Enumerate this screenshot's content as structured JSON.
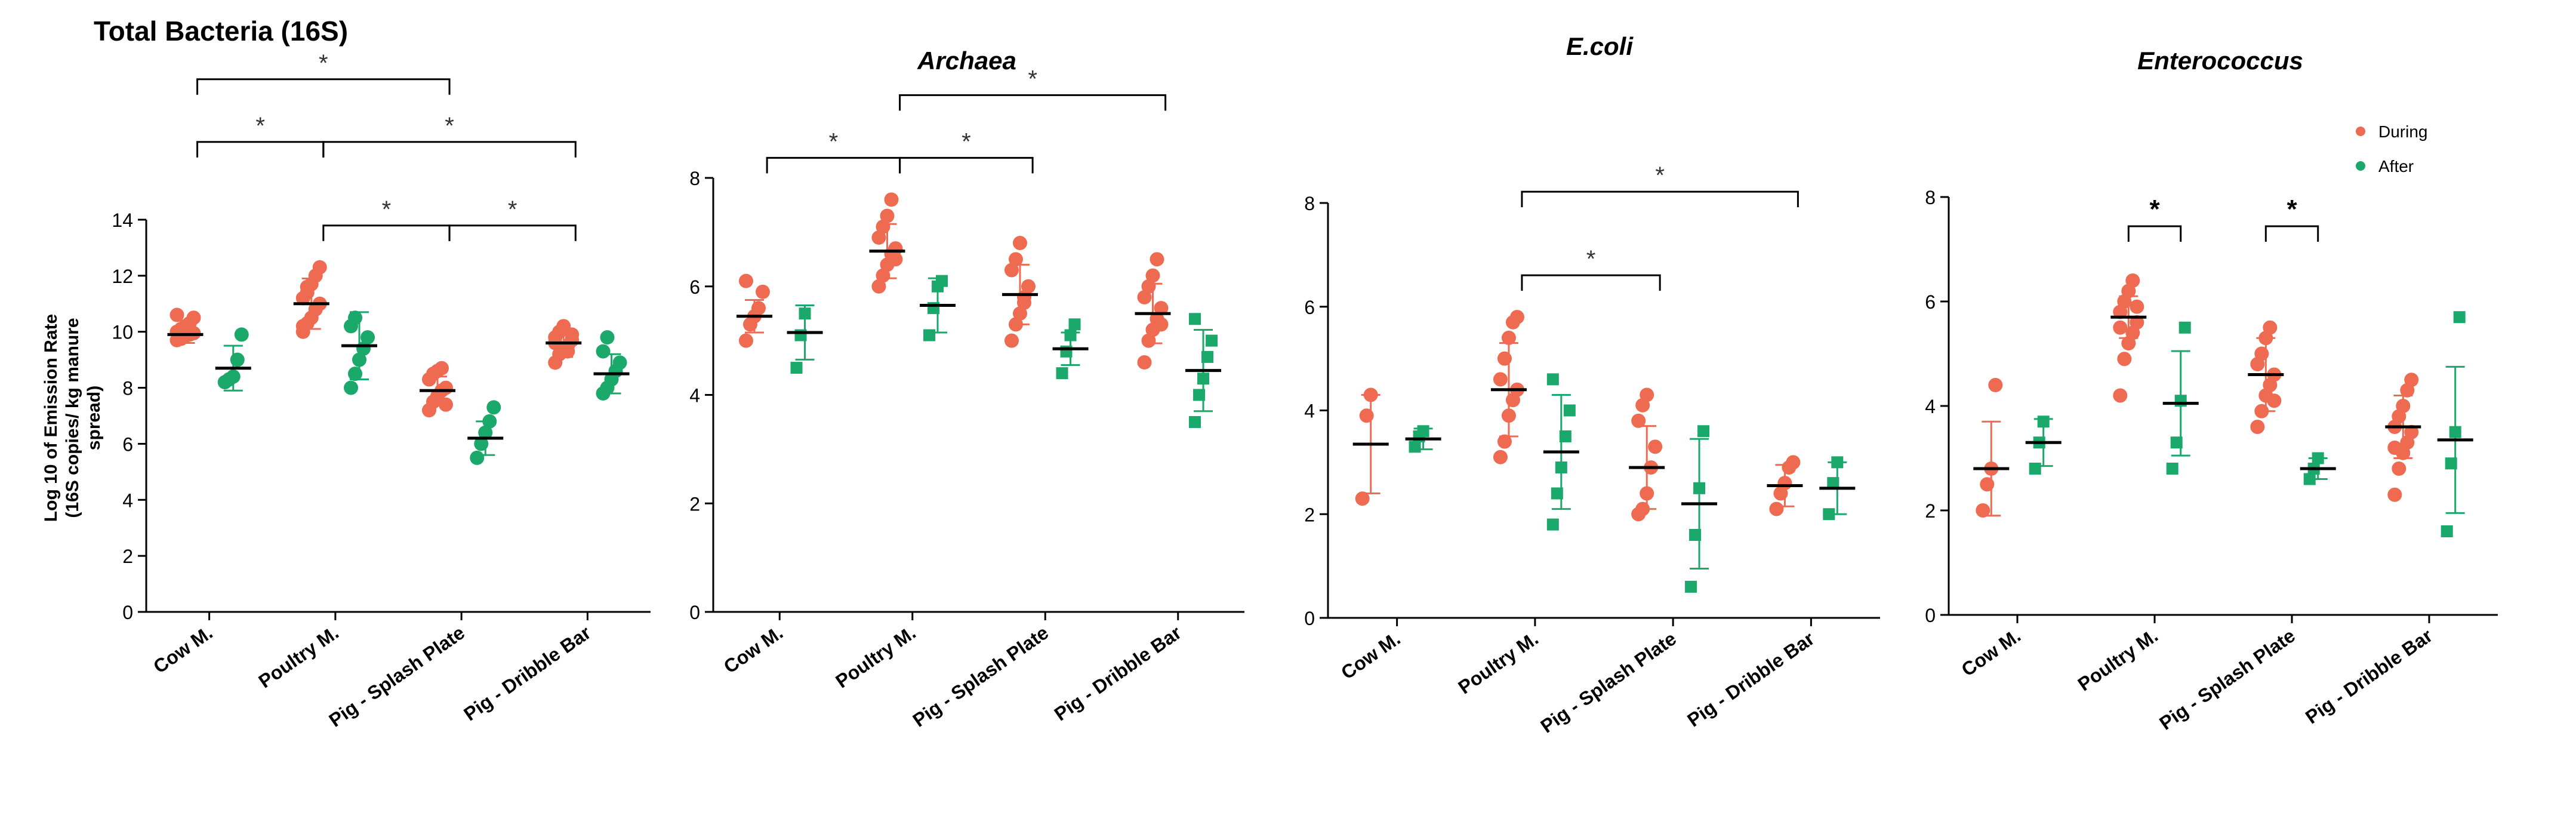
{
  "legend": {
    "position": "top-right",
    "entries": [
      {
        "label": "During",
        "color": "#ee6a50"
      },
      {
        "label": "After",
        "color": "#1aa86b"
      }
    ]
  },
  "ylabel_lines": [
    "Log 10 of Emission Rate",
    "(16S copies/ kg manure",
    "spread)"
  ],
  "chart_data": [
    {
      "type": "scatter",
      "title": "Total Bacteria (16S)",
      "title_style": "bold",
      "categories": [
        "Cow M.",
        "Poultry M.",
        "Pig - Splash Plate",
        "Pig - Dribble Bar"
      ],
      "ylim": [
        0,
        14
      ],
      "yticks": [
        0,
        2,
        4,
        6,
        8,
        10,
        12,
        14
      ],
      "series": [
        {
          "name": "During",
          "color": "#ee6a50",
          "marker": "circle",
          "groups": [
            {
              "mean": 9.9,
              "sd": 0.3,
              "points": [
                9.7,
                9.8,
                9.85,
                9.9,
                9.95,
                10.0,
                10.1,
                10.2,
                10.3,
                10.5,
                10.6,
                9.75
              ]
            },
            {
              "mean": 11.0,
              "sd": 0.9,
              "points": [
                10.0,
                10.3,
                10.5,
                10.8,
                11.0,
                11.2,
                11.4,
                11.7,
                12.0,
                12.3,
                10.2,
                11.6
              ]
            },
            {
              "mean": 7.9,
              "sd": 0.5,
              "points": [
                7.2,
                7.5,
                7.7,
                7.9,
                8.0,
                8.3,
                8.5,
                8.6,
                8.7,
                7.4
              ]
            },
            {
              "mean": 9.6,
              "sd": 0.5,
              "points": [
                8.9,
                9.2,
                9.4,
                9.5,
                9.7,
                9.8,
                10.0,
                10.2,
                9.3,
                9.9,
                9.6
              ]
            }
          ]
        },
        {
          "name": "After",
          "color": "#1aa86b",
          "marker": "circle",
          "groups": [
            {
              "mean": 8.7,
              "sd": 0.8,
              "points": [
                8.2,
                8.3,
                8.4,
                9.0,
                9.9
              ]
            },
            {
              "mean": 9.5,
              "sd": 1.2,
              "points": [
                8.0,
                8.5,
                9.0,
                9.4,
                9.8,
                10.2,
                10.5
              ]
            },
            {
              "mean": 6.2,
              "sd": 0.6,
              "points": [
                5.5,
                6.0,
                6.4,
                6.8,
                7.3
              ]
            },
            {
              "mean": 8.5,
              "sd": 0.7,
              "points": [
                7.8,
                8.0,
                8.3,
                8.6,
                8.9,
                9.3,
                9.8
              ]
            }
          ]
        }
      ],
      "significance": [
        {
          "from": 0,
          "to": 2,
          "level": 2,
          "label": "*"
        },
        {
          "from": 0,
          "to": 1,
          "level": 1,
          "label": "*"
        },
        {
          "from": 1,
          "to": 3,
          "level": 1,
          "label": "*"
        },
        {
          "from": 1,
          "to": 2,
          "level": 0,
          "label": "*"
        },
        {
          "from": 2,
          "to": 3,
          "level": 0,
          "label": "*"
        }
      ]
    },
    {
      "type": "scatter",
      "title": "Archaea",
      "title_style": "bold-italic",
      "categories": [
        "Cow M.",
        "Poultry M.",
        "Pig - Splash Plate",
        "Pig - Dribble Bar"
      ],
      "ylim": [
        0,
        8
      ],
      "yticks": [
        0,
        2,
        4,
        6,
        8
      ],
      "series": [
        {
          "name": "During",
          "color": "#ee6a50",
          "marker": "circle",
          "groups": [
            {
              "mean": 5.45,
              "sd": 0.3,
              "points": [
                5.0,
                5.3,
                5.45,
                5.6,
                5.9,
                6.1
              ]
            },
            {
              "mean": 6.65,
              "sd": 0.5,
              "points": [
                6.0,
                6.2,
                6.4,
                6.6,
                6.7,
                6.9,
                7.1,
                7.3,
                7.6,
                6.5
              ]
            },
            {
              "mean": 5.85,
              "sd": 0.55,
              "points": [
                5.0,
                5.3,
                5.5,
                5.8,
                6.0,
                6.3,
                6.5,
                6.8,
                5.7
              ]
            },
            {
              "mean": 5.5,
              "sd": 0.55,
              "points": [
                4.6,
                5.0,
                5.2,
                5.4,
                5.6,
                5.8,
                6.0,
                6.2,
                6.5,
                5.3
              ]
            }
          ]
        },
        {
          "name": "After",
          "color": "#1aa86b",
          "marker": "square",
          "groups": [
            {
              "mean": 5.15,
              "sd": 0.5,
              "points": [
                4.5,
                5.1,
                5.5
              ]
            },
            {
              "mean": 5.65,
              "sd": 0.5,
              "points": [
                5.1,
                5.6,
                6.0,
                6.1
              ]
            },
            {
              "mean": 4.85,
              "sd": 0.3,
              "points": [
                4.4,
                4.8,
                5.1,
                5.3
              ]
            },
            {
              "mean": 4.45,
              "sd": 0.75,
              "points": [
                3.5,
                4.0,
                4.3,
                4.7,
                5.0,
                5.4
              ]
            }
          ]
        }
      ],
      "significance": [
        {
          "from": 1,
          "to": 3,
          "level": 1,
          "label": "*"
        },
        {
          "from": 0,
          "to": 1,
          "level": 0,
          "label": "*"
        },
        {
          "from": 1,
          "to": 2,
          "level": 0,
          "label": "*"
        }
      ]
    },
    {
      "type": "scatter",
      "title": "E.coli",
      "title_style": "bold-italic",
      "categories": [
        "Cow M.",
        "Poultry M.",
        "Pig - Splash Plate",
        "Pig - Dribble Bar"
      ],
      "ylim": [
        0,
        8
      ],
      "yticks": [
        0,
        2,
        4,
        6,
        8
      ],
      "series": [
        {
          "name": "During",
          "color": "#ee6a50",
          "marker": "circle",
          "groups": [
            {
              "mean": 3.35,
              "sd": 0.95,
              "points": [
                2.3,
                3.9,
                4.3
              ]
            },
            {
              "mean": 4.4,
              "sd": 0.9,
              "points": [
                3.1,
                3.4,
                3.9,
                4.2,
                4.4,
                4.6,
                5.0,
                5.4,
                5.7,
                5.8
              ]
            },
            {
              "mean": 2.9,
              "sd": 0.8,
              "points": [
                2.0,
                2.1,
                2.4,
                2.9,
                3.3,
                3.8,
                4.1,
                4.3
              ]
            },
            {
              "mean": 2.55,
              "sd": 0.4,
              "points": [
                2.1,
                2.4,
                2.6,
                2.9,
                3.0
              ]
            }
          ]
        },
        {
          "name": "After",
          "color": "#1aa86b",
          "marker": "square",
          "groups": [
            {
              "mean": 3.45,
              "sd": 0.2,
              "points": [
                3.3,
                3.5,
                3.6
              ]
            },
            {
              "mean": 3.2,
              "sd": 1.1,
              "points": [
                1.8,
                2.4,
                2.9,
                3.5,
                4.0,
                4.6
              ]
            },
            {
              "mean": 2.2,
              "sd": 1.25,
              "points": [
                0.6,
                1.6,
                2.5,
                3.6
              ]
            },
            {
              "mean": 2.5,
              "sd": 0.5,
              "points": [
                2.0,
                2.6,
                3.0
              ]
            }
          ]
        }
      ],
      "significance": [
        {
          "from": 1,
          "to": 3,
          "level": 1,
          "label": "*"
        },
        {
          "from": 1,
          "to": 2,
          "level": 0,
          "label": "*"
        }
      ]
    },
    {
      "type": "scatter",
      "title": "Enterococcus",
      "title_style": "bold-italic",
      "categories": [
        "Cow M.",
        "Poultry M.",
        "Pig - Splash Plate",
        "Pig - Dribble Bar"
      ],
      "ylim": [
        0,
        8
      ],
      "yticks": [
        0,
        2,
        4,
        6,
        8
      ],
      "series": [
        {
          "name": "During",
          "color": "#ee6a50",
          "marker": "circle",
          "groups": [
            {
              "mean": 2.8,
              "sd": 0.9,
              "points": [
                2.0,
                2.5,
                2.8,
                4.4
              ]
            },
            {
              "mean": 5.7,
              "sd": 0.4,
              "points": [
                4.2,
                4.9,
                5.2,
                5.4,
                5.6,
                5.8,
                6.0,
                6.2,
                6.4,
                5.9,
                5.5
              ]
            },
            {
              "mean": 4.6,
              "sd": 0.7,
              "points": [
                3.6,
                3.9,
                4.2,
                4.4,
                4.6,
                4.8,
                5.0,
                5.3,
                5.5,
                4.1
              ]
            },
            {
              "mean": 3.6,
              "sd": 0.6,
              "points": [
                2.3,
                2.8,
                3.1,
                3.3,
                3.5,
                3.6,
                3.8,
                4.0,
                4.3,
                4.5,
                3.2
              ]
            }
          ]
        },
        {
          "name": "After",
          "color": "#1aa86b",
          "marker": "square",
          "groups": [
            {
              "mean": 3.3,
              "sd": 0.45,
              "points": [
                2.8,
                3.3,
                3.7
              ]
            },
            {
              "mean": 4.05,
              "sd": 1.0,
              "points": [
                2.8,
                3.3,
                4.1,
                5.5
              ]
            },
            {
              "mean": 2.8,
              "sd": 0.2,
              "points": [
                2.6,
                2.8,
                3.0
              ]
            },
            {
              "mean": 3.35,
              "sd": 1.4,
              "points": [
                1.6,
                2.9,
                3.5,
                5.7
              ]
            }
          ]
        }
      ],
      "significance": [
        {
          "from": 1,
          "to": 1,
          "pair": true,
          "label": "*"
        },
        {
          "from": 2,
          "to": 2,
          "pair": true,
          "label": "*"
        }
      ]
    }
  ]
}
